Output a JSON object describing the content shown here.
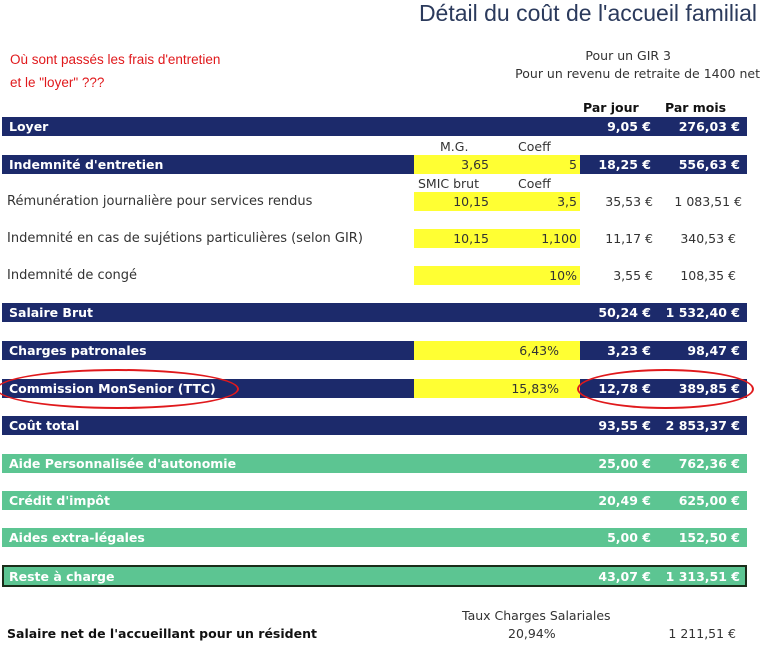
{
  "title": "Détail du coût de l'accueil familial",
  "annotation": {
    "line1": "Où sont passés les frais d'entretien",
    "line2": "et le \"loyer\" ???"
  },
  "subtitle": {
    "line1": "Pour un GIR 3",
    "line2": "Pour un revenu de retraite de 1400 net"
  },
  "columns": {
    "per_day": "Par jour",
    "per_month": "Par mois"
  },
  "rows": {
    "loyer": {
      "label": "Loyer",
      "day": "9,05 €",
      "month": "276,03 €"
    },
    "mg_label": "M.G.",
    "coeff_label": "Coeff",
    "entretien": {
      "label": "Indemnité d'entretien",
      "mg": "3,65",
      "coeff": "5",
      "day": "18,25 €",
      "month": "556,63 €"
    },
    "smic_label": "SMIC brut",
    "coeff_label2": "Coeff",
    "remuneration": {
      "label": "Rémunération journalière pour services rendus",
      "smic": "10,15",
      "coeff": "3,5",
      "day": "35,53 €",
      "month": "1 083,51 €"
    },
    "sujetions": {
      "label": "Indemnité en cas de sujétions particulières (selon GIR)",
      "smic": "10,15",
      "coeff": "1,100",
      "day": "11,17 €",
      "month": "340,53 €"
    },
    "conge": {
      "label": "Indemnité de congé",
      "rate": "10%",
      "day": "3,55 €",
      "month": "108,35 €"
    },
    "salaire_brut": {
      "label": "Salaire Brut",
      "day": "50,24 €",
      "month": "1 532,40 €"
    },
    "charges": {
      "label": "Charges patronales",
      "rate": "6,43%",
      "day": "3,23 €",
      "month": "98,47 €"
    },
    "commission": {
      "label": "Commission MonSenior (TTC)",
      "rate": "15,83%",
      "day": "12,78 €",
      "month": "389,85 €"
    },
    "cout_total": {
      "label": "Coût total",
      "day": "93,55 €",
      "month": "2 853,37 €"
    },
    "apa": {
      "label": "Aide Personnalisée d'autonomie",
      "day": "25,00 €",
      "month": "762,36 €"
    },
    "credit": {
      "label": "Crédit d'impôt",
      "day": "20,49 €",
      "month": "625,00 €"
    },
    "extra": {
      "label": "Aides extra-légales",
      "day": "5,00 €",
      "month": "152,50 €"
    },
    "reste": {
      "label": "Reste à charge",
      "day": "43,07 €",
      "month": "1 313,51 €"
    }
  },
  "footer": {
    "taux_label": "Taux Charges Salariales",
    "taux_value": "20,94%",
    "label": "Salaire net de l'accueillant pour un résident",
    "value": "1 211,51 €"
  },
  "colors": {
    "navy": "#1c2a6b",
    "green": "#5cc592",
    "yellow": "#ffff33",
    "annotation_red": "#e0191c"
  }
}
